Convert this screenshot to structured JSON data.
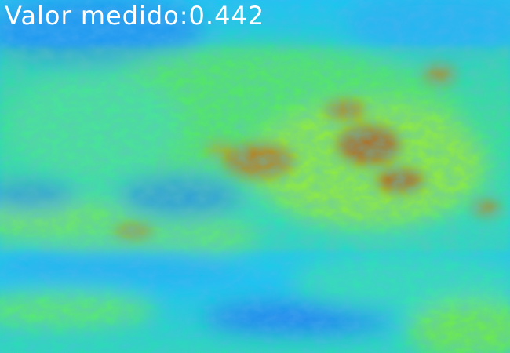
{
  "overlay": {
    "label": "Valor medido:",
    "value": "0.442"
  },
  "colors": {
    "text": "#ffffff",
    "low": "#1a6cf0",
    "mid_low": "#10d8f0",
    "mid": "#30f090",
    "mid_high": "#c0f020",
    "high": "#c03010"
  },
  "image": {
    "description_hint": "false-color vegetation index heatmap"
  }
}
